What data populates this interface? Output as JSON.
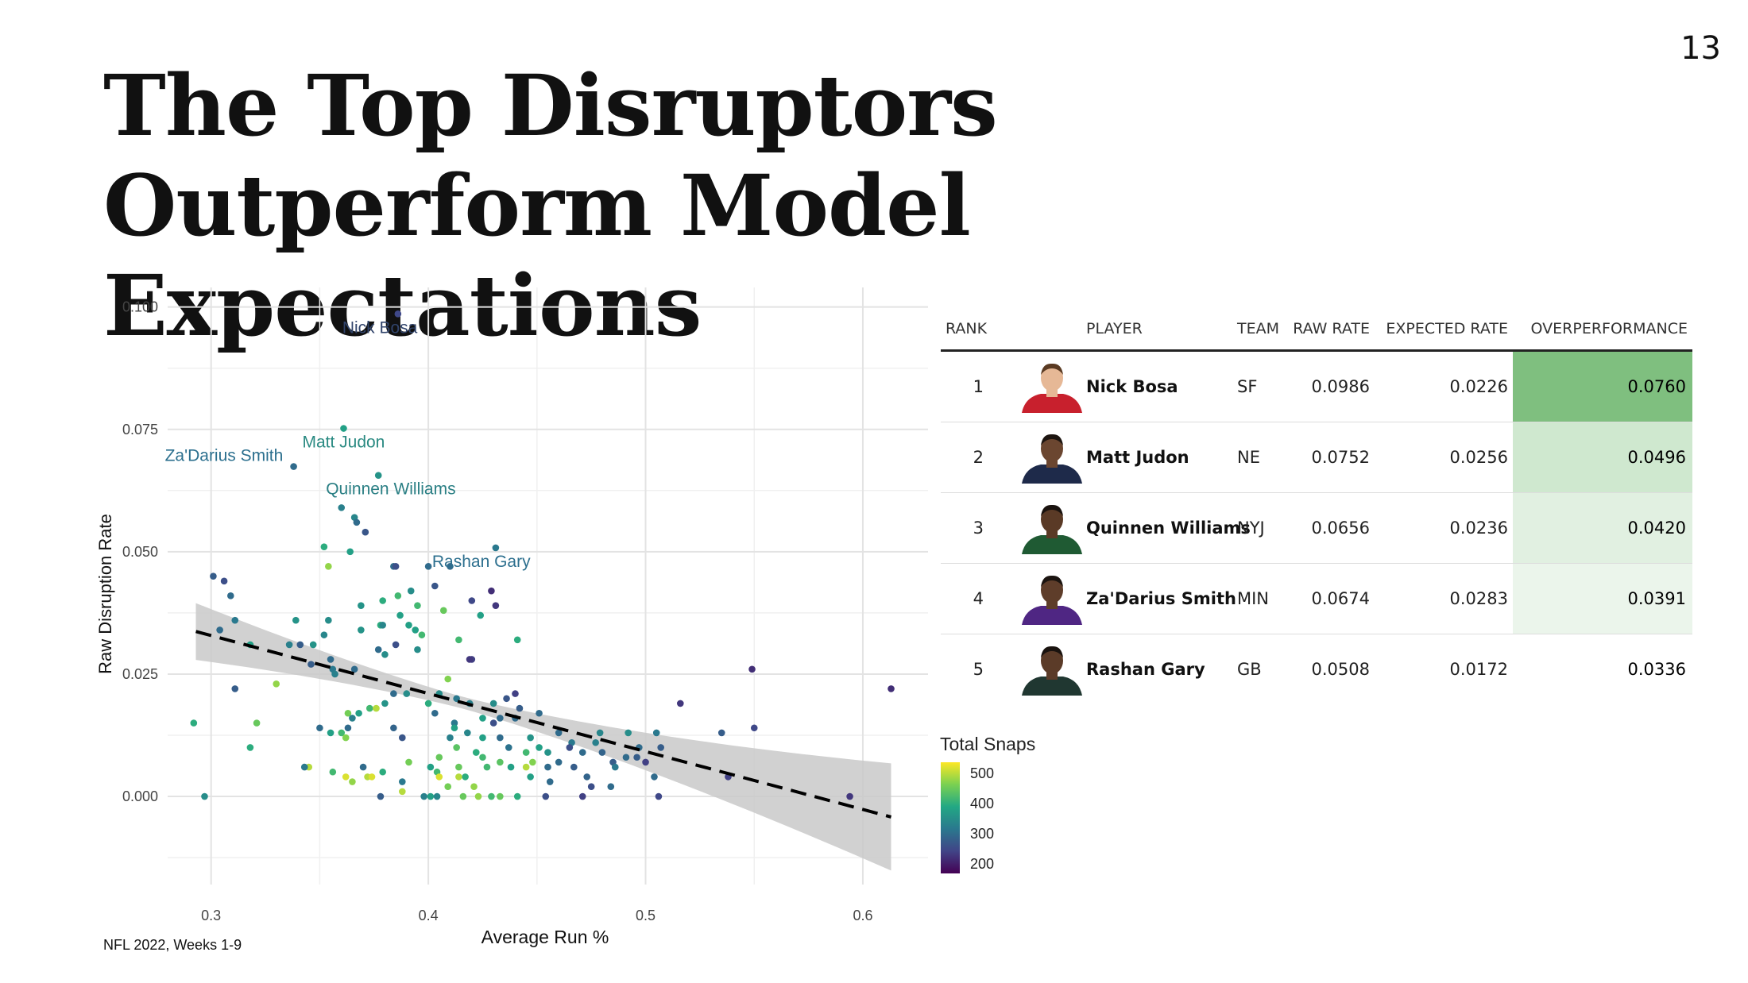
{
  "page_number": "13",
  "title": "The Top Disruptors Outperform Model Expectations",
  "footnote": "NFL 2022, Weeks 1-9",
  "chart_data": {
    "type": "scatter",
    "xlabel": "Average Run %",
    "ylabel": "Raw Disruption Rate",
    "xlim": [
      0.28,
      0.63
    ],
    "ylim": [
      -0.018,
      0.104
    ],
    "x_ticks": [
      0.3,
      0.4,
      0.5,
      0.6
    ],
    "x_tick_labels": [
      "0.3",
      "0.4",
      "0.5",
      "0.6"
    ],
    "y_ticks": [
      0.0,
      0.025,
      0.05,
      0.075,
      0.1
    ],
    "y_tick_labels": [
      "0.000",
      "0.025",
      "0.050",
      "0.075",
      "0.100"
    ],
    "grid": true,
    "color_scale": "viridis",
    "color_variable": "Total Snaps",
    "trend_line": {
      "x": [
        0.293,
        0.613
      ],
      "y": [
        0.0337,
        -0.0042
      ],
      "style": "dashed",
      "confidence_band": true
    },
    "annotations": [
      {
        "text": "Nick Bosa",
        "x": 0.386,
        "y": 0.0986,
        "color": "#31446b"
      },
      {
        "text": "Matt Judon",
        "x": 0.361,
        "y": 0.0752,
        "color": "#2a8a82"
      },
      {
        "text": "Quinnen Williams",
        "x": 0.377,
        "y": 0.0656,
        "color": "#2a7f84"
      },
      {
        "text": "Za'Darius Smith",
        "x": 0.338,
        "y": 0.0674,
        "color": "#2b6f8e"
      },
      {
        "text": "Rashan Gary",
        "x": 0.431,
        "y": 0.0508,
        "color": "#2c6f8e"
      }
    ],
    "points": [
      {
        "x": 0.386,
        "y": 0.0986,
        "snaps": 250
      },
      {
        "x": 0.361,
        "y": 0.0752,
        "snaps": 380
      },
      {
        "x": 0.377,
        "y": 0.0656,
        "snaps": 360
      },
      {
        "x": 0.338,
        "y": 0.0674,
        "snaps": 300
      },
      {
        "x": 0.431,
        "y": 0.0508,
        "snaps": 320
      },
      {
        "x": 0.36,
        "y": 0.059,
        "snaps": 330
      },
      {
        "x": 0.366,
        "y": 0.057,
        "snaps": 340
      },
      {
        "x": 0.367,
        "y": 0.056,
        "snaps": 300
      },
      {
        "x": 0.371,
        "y": 0.054,
        "snaps": 270
      },
      {
        "x": 0.352,
        "y": 0.051,
        "snaps": 400
      },
      {
        "x": 0.364,
        "y": 0.05,
        "snaps": 380
      },
      {
        "x": 0.354,
        "y": 0.047,
        "snaps": 480
      },
      {
        "x": 0.384,
        "y": 0.047,
        "snaps": 300
      },
      {
        "x": 0.385,
        "y": 0.047,
        "snaps": 260
      },
      {
        "x": 0.4,
        "y": 0.047,
        "snaps": 300
      },
      {
        "x": 0.41,
        "y": 0.047,
        "snaps": 300
      },
      {
        "x": 0.301,
        "y": 0.045,
        "snaps": 280
      },
      {
        "x": 0.306,
        "y": 0.044,
        "snaps": 260
      },
      {
        "x": 0.403,
        "y": 0.043,
        "snaps": 270
      },
      {
        "x": 0.392,
        "y": 0.042,
        "snaps": 350
      },
      {
        "x": 0.429,
        "y": 0.042,
        "snaps": 220
      },
      {
        "x": 0.309,
        "y": 0.041,
        "snaps": 300
      },
      {
        "x": 0.386,
        "y": 0.041,
        "snaps": 420
      },
      {
        "x": 0.379,
        "y": 0.04,
        "snaps": 400
      },
      {
        "x": 0.42,
        "y": 0.04,
        "snaps": 250
      },
      {
        "x": 0.431,
        "y": 0.039,
        "snaps": 230
      },
      {
        "x": 0.369,
        "y": 0.039,
        "snaps": 360
      },
      {
        "x": 0.395,
        "y": 0.039,
        "snaps": 420
      },
      {
        "x": 0.407,
        "y": 0.038,
        "snaps": 450
      },
      {
        "x": 0.424,
        "y": 0.037,
        "snaps": 380
      },
      {
        "x": 0.311,
        "y": 0.036,
        "snaps": 320
      },
      {
        "x": 0.387,
        "y": 0.037,
        "snaps": 380
      },
      {
        "x": 0.339,
        "y": 0.036,
        "snaps": 360
      },
      {
        "x": 0.354,
        "y": 0.036,
        "snaps": 350
      },
      {
        "x": 0.378,
        "y": 0.035,
        "snaps": 400
      },
      {
        "x": 0.391,
        "y": 0.035,
        "snaps": 380
      },
      {
        "x": 0.304,
        "y": 0.034,
        "snaps": 300
      },
      {
        "x": 0.379,
        "y": 0.035,
        "snaps": 340
      },
      {
        "x": 0.394,
        "y": 0.034,
        "snaps": 380
      },
      {
        "x": 0.369,
        "y": 0.034,
        "snaps": 360
      },
      {
        "x": 0.352,
        "y": 0.033,
        "snaps": 340
      },
      {
        "x": 0.397,
        "y": 0.033,
        "snaps": 420
      },
      {
        "x": 0.414,
        "y": 0.032,
        "snaps": 420
      },
      {
        "x": 0.441,
        "y": 0.032,
        "snaps": 400
      },
      {
        "x": 0.341,
        "y": 0.031,
        "snaps": 280
      },
      {
        "x": 0.336,
        "y": 0.031,
        "snaps": 330
      },
      {
        "x": 0.347,
        "y": 0.031,
        "snaps": 360
      },
      {
        "x": 0.318,
        "y": 0.031,
        "snaps": 380
      },
      {
        "x": 0.385,
        "y": 0.031,
        "snaps": 260
      },
      {
        "x": 0.377,
        "y": 0.03,
        "snaps": 300
      },
      {
        "x": 0.395,
        "y": 0.03,
        "snaps": 350
      },
      {
        "x": 0.38,
        "y": 0.029,
        "snaps": 350
      },
      {
        "x": 0.355,
        "y": 0.028,
        "snaps": 300
      },
      {
        "x": 0.42,
        "y": 0.028,
        "snaps": 240
      },
      {
        "x": 0.419,
        "y": 0.028,
        "snaps": 230
      },
      {
        "x": 0.346,
        "y": 0.027,
        "snaps": 280
      },
      {
        "x": 0.356,
        "y": 0.026,
        "snaps": 320
      },
      {
        "x": 0.366,
        "y": 0.026,
        "snaps": 300
      },
      {
        "x": 0.357,
        "y": 0.025,
        "snaps": 330
      },
      {
        "x": 0.409,
        "y": 0.024,
        "snaps": 470
      },
      {
        "x": 0.33,
        "y": 0.023,
        "snaps": 480
      },
      {
        "x": 0.311,
        "y": 0.022,
        "snaps": 280
      },
      {
        "x": 0.384,
        "y": 0.021,
        "snaps": 300
      },
      {
        "x": 0.39,
        "y": 0.021,
        "snaps": 350
      },
      {
        "x": 0.405,
        "y": 0.021,
        "snaps": 350
      },
      {
        "x": 0.44,
        "y": 0.021,
        "snaps": 240
      },
      {
        "x": 0.436,
        "y": 0.02,
        "snaps": 270
      },
      {
        "x": 0.413,
        "y": 0.02,
        "snaps": 320
      },
      {
        "x": 0.38,
        "y": 0.019,
        "snaps": 360
      },
      {
        "x": 0.4,
        "y": 0.019,
        "snaps": 400
      },
      {
        "x": 0.419,
        "y": 0.019,
        "snaps": 330
      },
      {
        "x": 0.43,
        "y": 0.019,
        "snaps": 350
      },
      {
        "x": 0.442,
        "y": 0.018,
        "snaps": 280
      },
      {
        "x": 0.373,
        "y": 0.018,
        "snaps": 420
      },
      {
        "x": 0.376,
        "y": 0.018,
        "snaps": 500
      },
      {
        "x": 0.451,
        "y": 0.017,
        "snaps": 300
      },
      {
        "x": 0.403,
        "y": 0.017,
        "snaps": 300
      },
      {
        "x": 0.363,
        "y": 0.017,
        "snaps": 460
      },
      {
        "x": 0.368,
        "y": 0.017,
        "snaps": 380
      },
      {
        "x": 0.365,
        "y": 0.016,
        "snaps": 330
      },
      {
        "x": 0.425,
        "y": 0.016,
        "snaps": 380
      },
      {
        "x": 0.433,
        "y": 0.016,
        "snaps": 300
      },
      {
        "x": 0.44,
        "y": 0.016,
        "snaps": 300
      },
      {
        "x": 0.43,
        "y": 0.015,
        "snaps": 260
      },
      {
        "x": 0.292,
        "y": 0.015,
        "snaps": 400
      },
      {
        "x": 0.321,
        "y": 0.015,
        "snaps": 450
      },
      {
        "x": 0.412,
        "y": 0.015,
        "snaps": 320
      },
      {
        "x": 0.35,
        "y": 0.014,
        "snaps": 300
      },
      {
        "x": 0.384,
        "y": 0.014,
        "snaps": 290
      },
      {
        "x": 0.412,
        "y": 0.014,
        "snaps": 380
      },
      {
        "x": 0.418,
        "y": 0.013,
        "snaps": 340
      },
      {
        "x": 0.363,
        "y": 0.014,
        "snaps": 300
      },
      {
        "x": 0.55,
        "y": 0.014,
        "snaps": 250
      },
      {
        "x": 0.535,
        "y": 0.013,
        "snaps": 280
      },
      {
        "x": 0.516,
        "y": 0.019,
        "snaps": 230
      },
      {
        "x": 0.549,
        "y": 0.026,
        "snaps": 220
      },
      {
        "x": 0.613,
        "y": 0.022,
        "snaps": 220
      },
      {
        "x": 0.46,
        "y": 0.013,
        "snaps": 300
      },
      {
        "x": 0.479,
        "y": 0.013,
        "snaps": 340
      },
      {
        "x": 0.492,
        "y": 0.013,
        "snaps": 350
      },
      {
        "x": 0.505,
        "y": 0.013,
        "snaps": 320
      },
      {
        "x": 0.36,
        "y": 0.013,
        "snaps": 420
      },
      {
        "x": 0.355,
        "y": 0.013,
        "snaps": 380
      },
      {
        "x": 0.362,
        "y": 0.012,
        "snaps": 470
      },
      {
        "x": 0.388,
        "y": 0.012,
        "snaps": 270
      },
      {
        "x": 0.41,
        "y": 0.012,
        "snaps": 330
      },
      {
        "x": 0.425,
        "y": 0.012,
        "snaps": 380
      },
      {
        "x": 0.433,
        "y": 0.012,
        "snaps": 300
      },
      {
        "x": 0.447,
        "y": 0.012,
        "snaps": 360
      },
      {
        "x": 0.466,
        "y": 0.011,
        "snaps": 320
      },
      {
        "x": 0.477,
        "y": 0.011,
        "snaps": 330
      },
      {
        "x": 0.318,
        "y": 0.01,
        "snaps": 400
      },
      {
        "x": 0.413,
        "y": 0.01,
        "snaps": 440
      },
      {
        "x": 0.437,
        "y": 0.01,
        "snaps": 310
      },
      {
        "x": 0.451,
        "y": 0.01,
        "snaps": 380
      },
      {
        "x": 0.465,
        "y": 0.01,
        "snaps": 260
      },
      {
        "x": 0.497,
        "y": 0.01,
        "snaps": 300
      },
      {
        "x": 0.507,
        "y": 0.01,
        "snaps": 280
      },
      {
        "x": 0.422,
        "y": 0.009,
        "snaps": 400
      },
      {
        "x": 0.445,
        "y": 0.009,
        "snaps": 420
      },
      {
        "x": 0.455,
        "y": 0.009,
        "snaps": 360
      },
      {
        "x": 0.471,
        "y": 0.009,
        "snaps": 300
      },
      {
        "x": 0.48,
        "y": 0.009,
        "snaps": 290
      },
      {
        "x": 0.491,
        "y": 0.008,
        "snaps": 300
      },
      {
        "x": 0.496,
        "y": 0.008,
        "snaps": 280
      },
      {
        "x": 0.405,
        "y": 0.008,
        "snaps": 450
      },
      {
        "x": 0.425,
        "y": 0.008,
        "snaps": 420
      },
      {
        "x": 0.433,
        "y": 0.007,
        "snaps": 440
      },
      {
        "x": 0.448,
        "y": 0.007,
        "snaps": 470
      },
      {
        "x": 0.46,
        "y": 0.007,
        "snaps": 300
      },
      {
        "x": 0.485,
        "y": 0.007,
        "snaps": 280
      },
      {
        "x": 0.5,
        "y": 0.007,
        "snaps": 240
      },
      {
        "x": 0.467,
        "y": 0.006,
        "snaps": 280
      },
      {
        "x": 0.486,
        "y": 0.006,
        "snaps": 320
      },
      {
        "x": 0.438,
        "y": 0.006,
        "snaps": 380
      },
      {
        "x": 0.455,
        "y": 0.006,
        "snaps": 300
      },
      {
        "x": 0.37,
        "y": 0.006,
        "snaps": 300
      },
      {
        "x": 0.391,
        "y": 0.007,
        "snaps": 460
      },
      {
        "x": 0.345,
        "y": 0.006,
        "snaps": 500
      },
      {
        "x": 0.343,
        "y": 0.006,
        "snaps": 320
      },
      {
        "x": 0.401,
        "y": 0.006,
        "snaps": 380
      },
      {
        "x": 0.414,
        "y": 0.006,
        "snaps": 450
      },
      {
        "x": 0.427,
        "y": 0.006,
        "snaps": 420
      },
      {
        "x": 0.445,
        "y": 0.006,
        "snaps": 500
      },
      {
        "x": 0.356,
        "y": 0.005,
        "snaps": 420
      },
      {
        "x": 0.379,
        "y": 0.005,
        "snaps": 400
      },
      {
        "x": 0.404,
        "y": 0.005,
        "snaps": 420
      },
      {
        "x": 0.417,
        "y": 0.004,
        "snaps": 400
      },
      {
        "x": 0.504,
        "y": 0.004,
        "snaps": 300
      },
      {
        "x": 0.538,
        "y": 0.004,
        "snaps": 240
      },
      {
        "x": 0.447,
        "y": 0.004,
        "snaps": 380
      },
      {
        "x": 0.473,
        "y": 0.004,
        "snaps": 290
      },
      {
        "x": 0.362,
        "y": 0.004,
        "snaps": 520
      },
      {
        "x": 0.372,
        "y": 0.004,
        "snaps": 500
      },
      {
        "x": 0.374,
        "y": 0.004,
        "snaps": 520
      },
      {
        "x": 0.405,
        "y": 0.004,
        "snaps": 520
      },
      {
        "x": 0.414,
        "y": 0.004,
        "snaps": 500
      },
      {
        "x": 0.456,
        "y": 0.003,
        "snaps": 300
      },
      {
        "x": 0.365,
        "y": 0.003,
        "snaps": 480
      },
      {
        "x": 0.388,
        "y": 0.003,
        "snaps": 320
      },
      {
        "x": 0.409,
        "y": 0.002,
        "snaps": 460
      },
      {
        "x": 0.421,
        "y": 0.002,
        "snaps": 480
      },
      {
        "x": 0.475,
        "y": 0.002,
        "snaps": 260
      },
      {
        "x": 0.484,
        "y": 0.002,
        "snaps": 300
      },
      {
        "x": 0.388,
        "y": 0.001,
        "snaps": 500
      },
      {
        "x": 0.297,
        "y": 0.0,
        "snaps": 350
      },
      {
        "x": 0.378,
        "y": 0.0,
        "snaps": 280
      },
      {
        "x": 0.398,
        "y": 0.0,
        "snaps": 330
      },
      {
        "x": 0.401,
        "y": 0.0,
        "snaps": 380
      },
      {
        "x": 0.404,
        "y": 0.0,
        "snaps": 340
      },
      {
        "x": 0.416,
        "y": 0.0,
        "snaps": 450
      },
      {
        "x": 0.423,
        "y": 0.0,
        "snaps": 480
      },
      {
        "x": 0.429,
        "y": 0.0,
        "snaps": 420
      },
      {
        "x": 0.433,
        "y": 0.0,
        "snaps": 450
      },
      {
        "x": 0.441,
        "y": 0.0,
        "snaps": 400
      },
      {
        "x": 0.454,
        "y": 0.0,
        "snaps": 260
      },
      {
        "x": 0.471,
        "y": 0.0,
        "snaps": 240
      },
      {
        "x": 0.506,
        "y": 0.0,
        "snaps": 250
      },
      {
        "x": 0.594,
        "y": 0.0,
        "snaps": 230
      }
    ]
  },
  "table": {
    "columns": [
      "RANK",
      "PLAYER",
      "TEAM",
      "RAW RATE",
      "EXPECTED RATE",
      "OVERPERFORMANCE"
    ],
    "rows": [
      {
        "rank": "1",
        "player": "Nick Bosa",
        "team": "SF",
        "raw": "0.0986",
        "expected": "0.0226",
        "over": "0.0760",
        "over_bg": "#7fbf7f",
        "jersey": "#c8202d",
        "skin": "#e6b896",
        "hair": "#5a3a22"
      },
      {
        "rank": "2",
        "player": "Matt Judon",
        "team": "NE",
        "raw": "0.0752",
        "expected": "0.0256",
        "over": "0.0496",
        "over_bg": "#cfe8cf",
        "jersey": "#1e2a4a",
        "skin": "#6b4630",
        "hair": "#1d1510"
      },
      {
        "rank": "3",
        "player": "Quinnen Williams",
        "team": "NYJ",
        "raw": "0.0656",
        "expected": "0.0236",
        "over": "0.0420",
        "over_bg": "#e1f0e1",
        "jersey": "#1f5a33",
        "skin": "#5a3a26",
        "hair": "#1a130f"
      },
      {
        "rank": "4",
        "player": "Za'Darius Smith",
        "team": "MIN",
        "raw": "0.0674",
        "expected": "0.0283",
        "over": "0.0391",
        "over_bg": "#ebf5eb",
        "jersey": "#4f2683",
        "skin": "#5e3d2a",
        "hair": "#1b1410"
      },
      {
        "rank": "5",
        "player": "Rashan Gary",
        "team": "GB",
        "raw": "0.0508",
        "expected": "0.0172",
        "over": "0.0336",
        "over_bg": "#ffffff",
        "jersey": "#203731",
        "skin": "#5b3b28",
        "hair": "#1a130f"
      }
    ]
  },
  "legend": {
    "title": "Total Snaps",
    "labels": [
      "500",
      "400",
      "300",
      "200"
    ],
    "values": [
      500,
      400,
      300,
      200
    ],
    "min": 170,
    "max": 540
  }
}
